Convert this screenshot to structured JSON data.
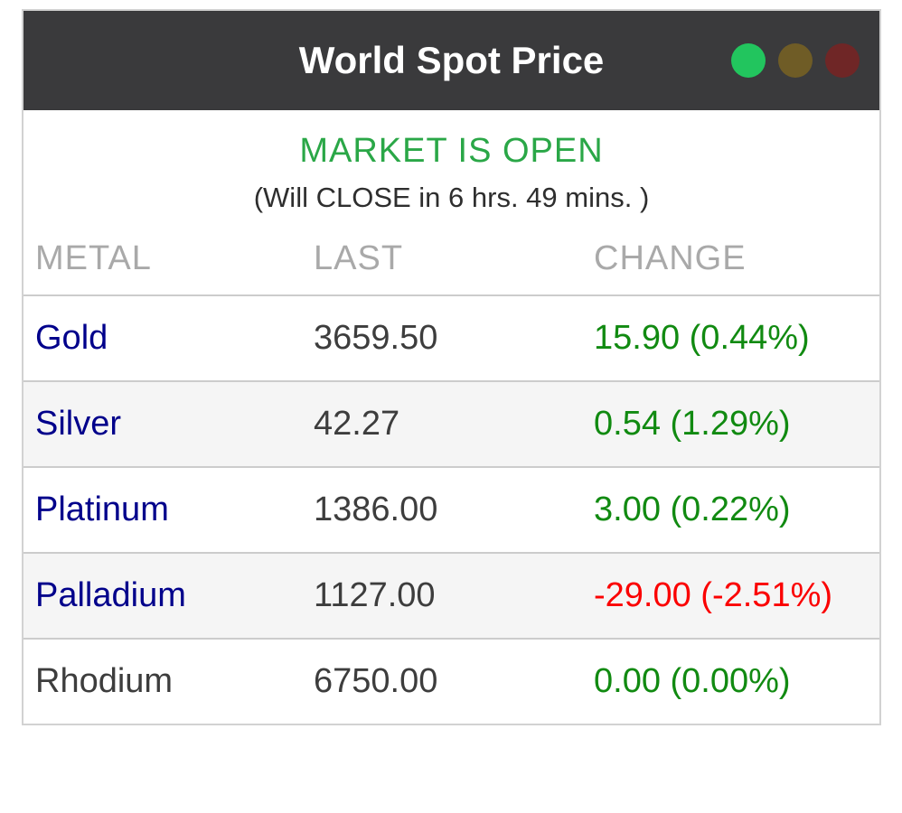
{
  "widget": {
    "title": "World Spot Price"
  },
  "titlebar": {
    "background": "#3a3a3c",
    "indicators": [
      {
        "name": "market-open-light",
        "color": "#22c55e",
        "active": true
      },
      {
        "name": "market-warning-light",
        "color": "#6f5c26",
        "active": false
      },
      {
        "name": "market-closed-light",
        "color": "#6f2626",
        "active": false
      }
    ]
  },
  "status": {
    "market_state": "MARKET IS OPEN",
    "market_state_color": "#2aa747",
    "close_info": "(Will CLOSE in 6 hrs. 49 mins. )"
  },
  "table": {
    "columns": [
      "METAL",
      "LAST",
      "CHANGE"
    ],
    "rows": [
      {
        "metal": "Gold",
        "metal_is_link": true,
        "last": "3659.50",
        "change": "15.90 (0.44%)",
        "direction": "up"
      },
      {
        "metal": "Silver",
        "metal_is_link": true,
        "last": "42.27",
        "change": "0.54 (1.29%)",
        "direction": "up"
      },
      {
        "metal": "Platinum",
        "metal_is_link": true,
        "last": "1386.00",
        "change": "3.00 (0.22%)",
        "direction": "up"
      },
      {
        "metal": "Palladium",
        "metal_is_link": true,
        "last": "1127.00",
        "change": "-29.00 (-2.51%)",
        "direction": "down"
      },
      {
        "metal": "Rhodium",
        "metal_is_link": false,
        "last": "6750.00",
        "change": "0.00 (0.00%)",
        "direction": "flat"
      }
    ],
    "colors": {
      "up": "#118a11",
      "down": "#fb0000",
      "flat": "#118a11",
      "link": "#00008b",
      "value": "#3d3d3d",
      "header": "#a9a9a9"
    }
  }
}
